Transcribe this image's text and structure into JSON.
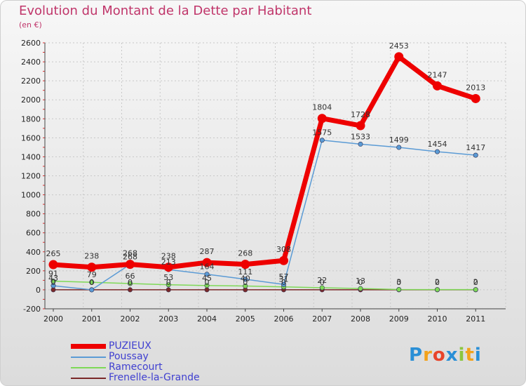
{
  "page": {
    "title": "Evolution du Montant de la Dette par Habitant",
    "subtitle": "(en €)"
  },
  "logo": {
    "letters": [
      {
        "char": "P",
        "color": "#2a8fd6"
      },
      {
        "char": "r",
        "color": "#f3a21b"
      },
      {
        "char": "o",
        "color": "#e8442a"
      },
      {
        "char": "x",
        "color": "#2a8fd6"
      },
      {
        "char": "i",
        "color": "#8cc63f"
      },
      {
        "char": "t",
        "color": "#f3a21b"
      },
      {
        "char": "i",
        "color": "#2a8fd6"
      }
    ]
  },
  "chart_data": {
    "type": "line",
    "title": "Evolution du Montant de la Dette par Habitant",
    "subtitle": "(en €)",
    "x": [
      2000,
      2001,
      2002,
      2003,
      2004,
      2005,
      2006,
      2007,
      2008,
      2009,
      2010,
      2011
    ],
    "ylim": [
      -200,
      2600
    ],
    "yticks": [
      -200,
      0,
      200,
      400,
      600,
      800,
      1000,
      1200,
      1400,
      1600,
      1800,
      2000,
      2200,
      2400,
      2600
    ],
    "grid": true,
    "legend_position": "bottom-left",
    "series": [
      {
        "name": "PUZIEUX",
        "color": "#ee0000",
        "width": 7,
        "values": [
          265,
          238,
          268,
          238,
          287,
          268,
          308,
          1804,
          1728,
          2453,
          2147,
          2013
        ],
        "labels": [
          "265",
          "238",
          "268",
          "238",
          "287",
          "268",
          "308",
          "1804",
          "1728",
          "2453",
          "2147",
          "2013"
        ]
      },
      {
        "name": "Poussay",
        "color": "#5b9bd5",
        "width": 1.5,
        "values": [
          43,
          0,
          268,
          213,
          164,
          111,
          57,
          1575,
          1533,
          1499,
          1454,
          1417
        ],
        "labels": [
          "43",
          "0",
          "268",
          "213",
          "164",
          "111",
          "57",
          "1575",
          "1533",
          "1499",
          "1454",
          "1417"
        ]
      },
      {
        "name": "Ramecourt",
        "color": "#7ed957",
        "width": 1.5,
        "values": [
          91,
          79,
          66,
          53,
          45,
          40,
          31,
          22,
          13,
          3,
          2,
          2
        ],
        "labels": [
          "91",
          "79",
          "66",
          "53",
          "45",
          "40",
          "31",
          "22",
          "13",
          "3",
          "2",
          "2"
        ]
      },
      {
        "name": "Frenelle-la-Grande",
        "color": "#7a2828",
        "width": 1.5,
        "values": [
          0,
          0,
          0,
          0,
          0,
          0,
          0,
          0,
          0,
          0,
          0,
          0
        ],
        "labels": [
          "0",
          "0",
          "0",
          "0",
          "0",
          "0",
          "0",
          "0",
          "0",
          "0",
          "0",
          "0"
        ]
      }
    ]
  }
}
